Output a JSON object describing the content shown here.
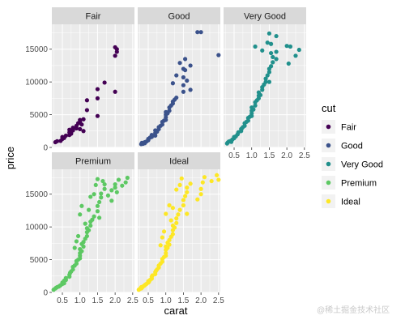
{
  "chart_data": {
    "type": "scatter",
    "facet_by": "cut",
    "facet_layout": "3 columns, 2 rows",
    "xlabel": "carat",
    "ylabel": "price",
    "xlim": [
      0.2,
      2.55
    ],
    "ylim": [
      0,
      18800
    ],
    "x_ticks": [
      0.5,
      1.0,
      1.5,
      2.0,
      2.5
    ],
    "x_tick_labels": [
      "0.5",
      "1.0",
      "1.5",
      "2.0",
      "2.5"
    ],
    "y_ticks": [
      0,
      5000,
      10000,
      15000
    ],
    "y_tick_labels": [
      "0",
      "5000",
      "10000",
      "15000"
    ],
    "grid": true,
    "legend": {
      "title": "cut",
      "position": "right",
      "entries": [
        {
          "label": "Fair",
          "color": "#440154"
        },
        {
          "label": "Good",
          "color": "#3B528B"
        },
        {
          "label": "Very Good",
          "color": "#21908C"
        },
        {
          "label": "Premium",
          "color": "#5DC863"
        },
        {
          "label": "Ideal",
          "color": "#FDE725"
        }
      ]
    },
    "series": [
      {
        "name": "Fair",
        "color": "#440154",
        "points": [
          [
            0.3,
            800
          ],
          [
            0.35,
            950
          ],
          [
            0.45,
            1000
          ],
          [
            0.5,
            1300
          ],
          [
            0.5,
            1600
          ],
          [
            0.55,
            1450
          ],
          [
            0.6,
            1800
          ],
          [
            0.7,
            1900
          ],
          [
            0.7,
            2300
          ],
          [
            0.7,
            2700
          ],
          [
            0.75,
            2100
          ],
          [
            0.8,
            2600
          ],
          [
            0.8,
            3000
          ],
          [
            0.9,
            2900
          ],
          [
            0.9,
            3300
          ],
          [
            0.95,
            3700
          ],
          [
            1.0,
            3900
          ],
          [
            1.0,
            4200
          ],
          [
            1.0,
            2800
          ],
          [
            1.05,
            3500
          ],
          [
            1.1,
            4300
          ],
          [
            1.1,
            2500
          ],
          [
            1.2,
            5700
          ],
          [
            1.2,
            7200
          ],
          [
            1.5,
            4800
          ],
          [
            1.5,
            7500
          ],
          [
            1.5,
            8900
          ],
          [
            1.7,
            9900
          ],
          [
            2.0,
            8500
          ],
          [
            2.0,
            14000
          ],
          [
            2.0,
            15300
          ],
          [
            2.05,
            15000
          ],
          [
            2.05,
            14600
          ]
        ]
      },
      {
        "name": "Good",
        "color": "#3B528B",
        "points": [
          [
            0.3,
            500
          ],
          [
            0.32,
            700
          ],
          [
            0.35,
            550
          ],
          [
            0.4,
            800
          ],
          [
            0.4,
            650
          ],
          [
            0.45,
            900
          ],
          [
            0.5,
            1100
          ],
          [
            0.5,
            1300
          ],
          [
            0.55,
            1500
          ],
          [
            0.6,
            1600
          ],
          [
            0.6,
            1900
          ],
          [
            0.7,
            1800
          ],
          [
            0.7,
            2200
          ],
          [
            0.7,
            2600
          ],
          [
            0.75,
            2400
          ],
          [
            0.8,
            2800
          ],
          [
            0.8,
            3100
          ],
          [
            0.85,
            3300
          ],
          [
            0.9,
            3500
          ],
          [
            0.9,
            3900
          ],
          [
            0.95,
            4100
          ],
          [
            1.0,
            4200
          ],
          [
            1.0,
            4600
          ],
          [
            1.0,
            5000
          ],
          [
            1.0,
            5400
          ],
          [
            1.05,
            5200
          ],
          [
            1.1,
            5600
          ],
          [
            1.1,
            6100
          ],
          [
            1.15,
            6400
          ],
          [
            1.2,
            6700
          ],
          [
            1.2,
            7000
          ],
          [
            1.25,
            7300
          ],
          [
            1.3,
            7600
          ],
          [
            1.5,
            8500
          ],
          [
            1.5,
            9500
          ],
          [
            1.5,
            10700
          ],
          [
            1.55,
            11800
          ],
          [
            1.5,
            12000
          ],
          [
            1.6,
            10200
          ],
          [
            1.7,
            12500
          ],
          [
            1.2,
            9800
          ],
          [
            1.3,
            11000
          ],
          [
            1.4,
            12900
          ],
          [
            1.55,
            13500
          ],
          [
            1.9,
            17600
          ],
          [
            2.0,
            17600
          ],
          [
            1.7,
            8800
          ],
          [
            2.5,
            14100
          ]
        ]
      },
      {
        "name": "Very Good",
        "color": "#21908C",
        "points": [
          [
            0.3,
            600
          ],
          [
            0.32,
            750
          ],
          [
            0.35,
            900
          ],
          [
            0.4,
            1000
          ],
          [
            0.42,
            850
          ],
          [
            0.45,
            1200
          ],
          [
            0.5,
            1400
          ],
          [
            0.5,
            1600
          ],
          [
            0.55,
            1700
          ],
          [
            0.6,
            2000
          ],
          [
            0.62,
            2300
          ],
          [
            0.7,
            2500
          ],
          [
            0.7,
            2800
          ],
          [
            0.72,
            2900
          ],
          [
            0.75,
            3100
          ],
          [
            0.8,
            3300
          ],
          [
            0.8,
            3700
          ],
          [
            0.85,
            3900
          ],
          [
            0.9,
            4100
          ],
          [
            0.9,
            4500
          ],
          [
            0.95,
            4700
          ],
          [
            1.0,
            4800
          ],
          [
            1.0,
            5200
          ],
          [
            1.0,
            5600
          ],
          [
            1.0,
            6100
          ],
          [
            1.05,
            5800
          ],
          [
            1.1,
            6400
          ],
          [
            1.1,
            6900
          ],
          [
            1.15,
            7200
          ],
          [
            1.2,
            7500
          ],
          [
            1.2,
            7900
          ],
          [
            1.2,
            8400
          ],
          [
            1.25,
            8000
          ],
          [
            1.3,
            8800
          ],
          [
            1.3,
            9200
          ],
          [
            1.35,
            9600
          ],
          [
            1.4,
            10000
          ],
          [
            1.4,
            10500
          ],
          [
            1.45,
            11000
          ],
          [
            1.5,
            11500
          ],
          [
            1.5,
            12000
          ],
          [
            1.5,
            10000
          ],
          [
            1.55,
            12400
          ],
          [
            1.6,
            13000
          ],
          [
            1.6,
            13800
          ],
          [
            1.7,
            14600
          ],
          [
            1.7,
            13500
          ],
          [
            1.1,
            15400
          ],
          [
            1.5,
            17400
          ],
          [
            1.7,
            17000
          ],
          [
            2.0,
            15500
          ],
          [
            2.05,
            12800
          ],
          [
            2.1,
            15400
          ],
          [
            2.25,
            14000
          ],
          [
            2.35,
            14900
          ],
          [
            1.3,
            14800
          ],
          [
            1.55,
            15800
          ],
          [
            1.45,
            16000
          ],
          [
            1.55,
            14400
          ]
        ]
      },
      {
        "name": "Premium",
        "color": "#5DC863",
        "points": [
          [
            0.25,
            400
          ],
          [
            0.3,
            600
          ],
          [
            0.32,
            700
          ],
          [
            0.35,
            800
          ],
          [
            0.4,
            900
          ],
          [
            0.42,
            1000
          ],
          [
            0.45,
            1100
          ],
          [
            0.5,
            1300
          ],
          [
            0.5,
            1500
          ],
          [
            0.55,
            1400
          ],
          [
            0.55,
            1800
          ],
          [
            0.6,
            1900
          ],
          [
            0.6,
            2200
          ],
          [
            0.7,
            2400
          ],
          [
            0.7,
            2700
          ],
          [
            0.72,
            3000
          ],
          [
            0.75,
            3200
          ],
          [
            0.8,
            3500
          ],
          [
            0.8,
            3900
          ],
          [
            0.85,
            4100
          ],
          [
            0.9,
            4400
          ],
          [
            0.9,
            4800
          ],
          [
            0.95,
            5000
          ],
          [
            1.0,
            5200
          ],
          [
            1.0,
            5600
          ],
          [
            1.0,
            6000
          ],
          [
            1.0,
            6600
          ],
          [
            1.05,
            6300
          ],
          [
            1.05,
            7400
          ],
          [
            1.1,
            7000
          ],
          [
            1.1,
            7700
          ],
          [
            1.15,
            8200
          ],
          [
            1.2,
            8600
          ],
          [
            1.2,
            9200
          ],
          [
            1.2,
            9800
          ],
          [
            1.25,
            9500
          ],
          [
            1.3,
            10200
          ],
          [
            1.3,
            10800
          ],
          [
            1.35,
            11100
          ],
          [
            1.4,
            11600
          ],
          [
            1.5,
            12400
          ],
          [
            1.5,
            13200
          ],
          [
            1.55,
            13800
          ],
          [
            1.6,
            14500
          ],
          [
            1.6,
            15100
          ],
          [
            1.7,
            15800
          ],
          [
            1.7,
            16500
          ],
          [
            1.5,
            17300
          ],
          [
            1.8,
            14800
          ],
          [
            1.9,
            14000
          ],
          [
            1.9,
            15600
          ],
          [
            2.0,
            16000
          ],
          [
            2.0,
            16500
          ],
          [
            2.05,
            15300
          ],
          [
            2.1,
            17200
          ],
          [
            2.2,
            16300
          ],
          [
            2.3,
            16800
          ],
          [
            2.35,
            17500
          ],
          [
            1.0,
            11900
          ],
          [
            1.05,
            13200
          ],
          [
            1.3,
            14600
          ],
          [
            1.4,
            15000
          ],
          [
            1.45,
            16400
          ],
          [
            1.65,
            17000
          ],
          [
            1.25,
            12600
          ],
          [
            1.55,
            11400
          ],
          [
            0.9,
            7800
          ],
          [
            0.95,
            8600
          ],
          [
            1.15,
            10500
          ],
          [
            0.85,
            6800
          ]
        ]
      },
      {
        "name": "Ideal",
        "color": "#FDE725",
        "points": [
          [
            0.23,
            400
          ],
          [
            0.25,
            500
          ],
          [
            0.3,
            600
          ],
          [
            0.3,
            800
          ],
          [
            0.32,
            700
          ],
          [
            0.35,
            900
          ],
          [
            0.38,
            1000
          ],
          [
            0.4,
            1100
          ],
          [
            0.42,
            1200
          ],
          [
            0.45,
            1300
          ],
          [
            0.5,
            1500
          ],
          [
            0.5,
            1700
          ],
          [
            0.52,
            1600
          ],
          [
            0.55,
            1900
          ],
          [
            0.6,
            2100
          ],
          [
            0.6,
            2400
          ],
          [
            0.62,
            2600
          ],
          [
            0.7,
            2800
          ],
          [
            0.7,
            3100
          ],
          [
            0.72,
            3300
          ],
          [
            0.75,
            3500
          ],
          [
            0.8,
            3800
          ],
          [
            0.8,
            4100
          ],
          [
            0.85,
            4400
          ],
          [
            0.9,
            4700
          ],
          [
            0.9,
            5100
          ],
          [
            0.95,
            5400
          ],
          [
            1.0,
            5600
          ],
          [
            1.0,
            6000
          ],
          [
            1.0,
            6500
          ],
          [
            1.0,
            7000
          ],
          [
            1.05,
            6800
          ],
          [
            1.05,
            7600
          ],
          [
            1.1,
            7300
          ],
          [
            1.1,
            8000
          ],
          [
            1.15,
            8500
          ],
          [
            1.2,
            8900
          ],
          [
            1.2,
            9500
          ],
          [
            1.2,
            10200
          ],
          [
            1.25,
            9900
          ],
          [
            1.3,
            10600
          ],
          [
            1.3,
            11300
          ],
          [
            1.35,
            11900
          ],
          [
            1.4,
            12600
          ],
          [
            1.5,
            13300
          ],
          [
            1.5,
            14100
          ],
          [
            1.55,
            14700
          ],
          [
            1.6,
            15300
          ],
          [
            1.6,
            16000
          ],
          [
            1.7,
            16600
          ],
          [
            1.9,
            14200
          ],
          [
            2.0,
            15000
          ],
          [
            2.0,
            15800
          ],
          [
            2.05,
            16800
          ],
          [
            2.1,
            17600
          ],
          [
            2.3,
            17000
          ],
          [
            2.45,
            17900
          ],
          [
            2.5,
            17200
          ],
          [
            1.0,
            12000
          ],
          [
            1.1,
            13300
          ],
          [
            1.3,
            15700
          ],
          [
            1.4,
            16400
          ],
          [
            1.45,
            17400
          ],
          [
            1.2,
            12900
          ],
          [
            1.6,
            12000
          ],
          [
            0.9,
            8400
          ],
          [
            0.95,
            9300
          ],
          [
            1.15,
            11000
          ],
          [
            0.85,
            7200
          ]
        ]
      }
    ]
  },
  "watermark": "@稀土掘金技术社区"
}
